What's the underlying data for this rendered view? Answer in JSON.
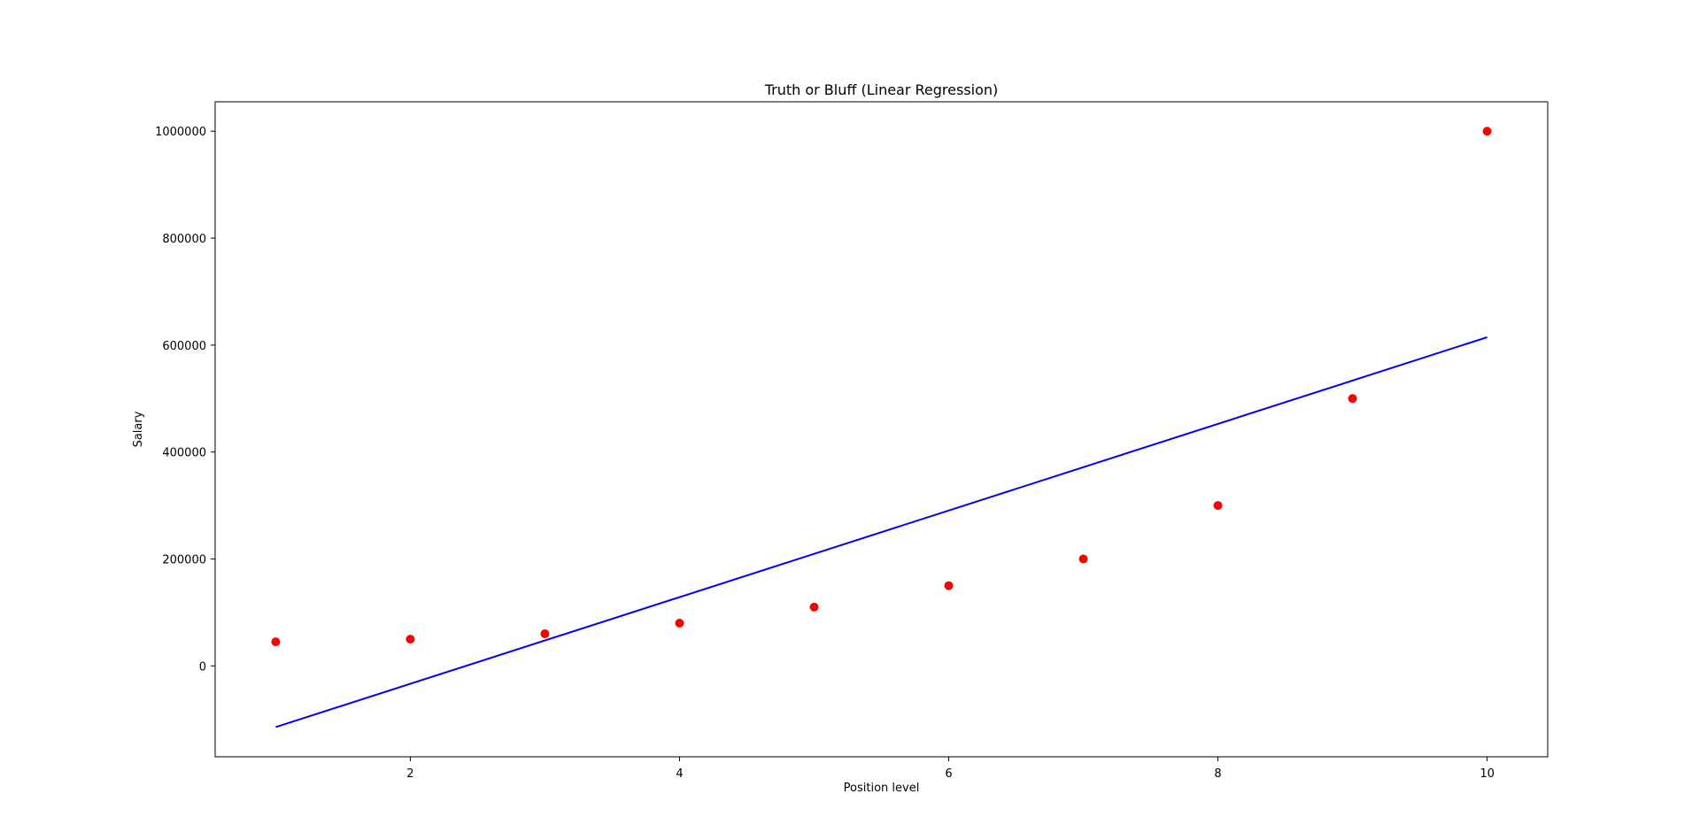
{
  "chart_data": {
    "type": "scatter",
    "title": "Truth or Bluff (Linear Regression)",
    "xlabel": "Position level",
    "ylabel": "Salary",
    "xlim": [
      0.55,
      10.45
    ],
    "ylim": [
      -170000,
      1055000
    ],
    "x_ticks": [
      2,
      4,
      6,
      8,
      10
    ],
    "y_ticks": [
      0,
      200000,
      400000,
      600000,
      800000,
      1000000
    ],
    "x_tick_labels": [
      "2",
      "4",
      "6",
      "8",
      "10"
    ],
    "y_tick_labels": [
      "0",
      "200000",
      "400000",
      "600000",
      "800000",
      "1000000"
    ],
    "grid": false,
    "series": [
      {
        "kind": "scatter",
        "color": "#ff0000",
        "x": [
          1,
          2,
          3,
          4,
          5,
          6,
          7,
          8,
          9,
          10
        ],
        "y": [
          45000,
          50000,
          60000,
          80000,
          110000,
          150000,
          200000,
          300000,
          500000,
          1000000
        ]
      },
      {
        "kind": "line",
        "color": "#0000ff",
        "x": [
          1,
          10
        ],
        "y": [
          -114455,
          614665
        ]
      }
    ]
  }
}
